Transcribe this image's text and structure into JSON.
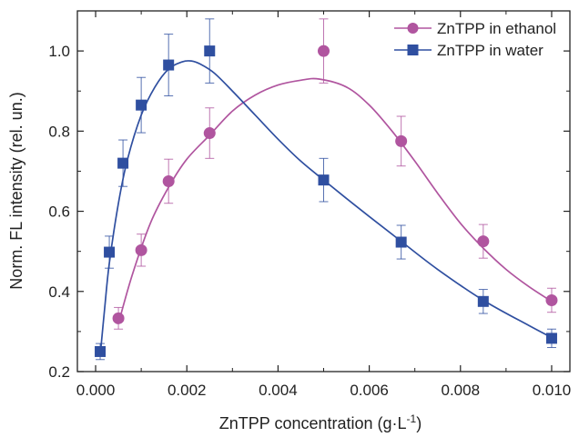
{
  "chart_data": {
    "type": "scatter",
    "xlabel": "ZnTPP concentration (g·L",
    "xlabel_sup": "-1",
    "xlabel_end": ")",
    "ylabel": "Norm. FL intensity (rel. un.)",
    "xlim": [
      -0.0004,
      0.0104
    ],
    "ylim": [
      0.2,
      1.1
    ],
    "x_ticks": [
      0.0,
      0.002,
      0.004,
      0.006,
      0.008,
      0.01
    ],
    "x_tick_labels": [
      "0.000",
      "0.002",
      "0.004",
      "0.006",
      "0.008",
      "0.010"
    ],
    "y_ticks": [
      0.2,
      0.4,
      0.6,
      0.8,
      1.0
    ],
    "y_tick_labels": [
      "0.2",
      "0.4",
      "0.6",
      "0.8",
      "1.0"
    ],
    "grid": false,
    "legend_position": "top-right",
    "series": [
      {
        "name": "ZnTPP in ethanol",
        "color": "#b0559f",
        "marker": "circle",
        "points": [
          {
            "x": 0.0005,
            "y": 0.333,
            "err": 0.027
          },
          {
            "x": 0.001,
            "y": 0.503,
            "err": 0.04
          },
          {
            "x": 0.0016,
            "y": 0.675,
            "err": 0.055
          },
          {
            "x": 0.0025,
            "y": 0.795,
            "err": 0.063
          },
          {
            "x": 0.005,
            "y": 1.0,
            "err": 0.08
          },
          {
            "x": 0.0067,
            "y": 0.775,
            "err": 0.062
          },
          {
            "x": 0.0085,
            "y": 0.525,
            "err": 0.042
          },
          {
            "x": 0.01,
            "y": 0.378,
            "err": 0.03
          }
        ],
        "fit": [
          [
            0.0005,
            0.32
          ],
          [
            0.0008,
            0.44
          ],
          [
            0.0012,
            0.57
          ],
          [
            0.0016,
            0.66
          ],
          [
            0.002,
            0.73
          ],
          [
            0.0025,
            0.79
          ],
          [
            0.003,
            0.85
          ],
          [
            0.0035,
            0.89
          ],
          [
            0.004,
            0.915
          ],
          [
            0.0045,
            0.927
          ],
          [
            0.0049,
            0.93
          ],
          [
            0.0055,
            0.91
          ],
          [
            0.006,
            0.865
          ],
          [
            0.0065,
            0.8
          ],
          [
            0.007,
            0.725
          ],
          [
            0.0075,
            0.645
          ],
          [
            0.008,
            0.57
          ],
          [
            0.0085,
            0.508
          ],
          [
            0.009,
            0.455
          ],
          [
            0.0095,
            0.412
          ],
          [
            0.01,
            0.375
          ]
        ]
      },
      {
        "name": "ZnTPP in water",
        "color": "#2f4fa0",
        "marker": "square",
        "points": [
          {
            "x": 0.0001,
            "y": 0.25,
            "err": 0.02
          },
          {
            "x": 0.0003,
            "y": 0.498,
            "err": 0.04
          },
          {
            "x": 0.0006,
            "y": 0.72,
            "err": 0.058
          },
          {
            "x": 0.001,
            "y": 0.865,
            "err": 0.069
          },
          {
            "x": 0.0016,
            "y": 0.965,
            "err": 0.077
          },
          {
            "x": 0.0025,
            "y": 1.0,
            "err": 0.08
          },
          {
            "x": 0.005,
            "y": 0.678,
            "err": 0.054
          },
          {
            "x": 0.0067,
            "y": 0.523,
            "err": 0.042
          },
          {
            "x": 0.0085,
            "y": 0.375,
            "err": 0.03
          },
          {
            "x": 0.01,
            "y": 0.283,
            "err": 0.023
          }
        ],
        "fit": [
          [
            0.0001,
            0.24
          ],
          [
            0.0002,
            0.36
          ],
          [
            0.0003,
            0.47
          ],
          [
            0.0005,
            0.62
          ],
          [
            0.0007,
            0.73
          ],
          [
            0.001,
            0.84
          ],
          [
            0.0013,
            0.91
          ],
          [
            0.0016,
            0.955
          ],
          [
            0.0019,
            0.973
          ],
          [
            0.0021,
            0.975
          ],
          [
            0.0023,
            0.967
          ],
          [
            0.0026,
            0.945
          ],
          [
            0.003,
            0.9
          ],
          [
            0.0035,
            0.84
          ],
          [
            0.004,
            0.78
          ],
          [
            0.0045,
            0.725
          ],
          [
            0.005,
            0.678
          ],
          [
            0.0055,
            0.632
          ],
          [
            0.006,
            0.587
          ],
          [
            0.0067,
            0.525
          ],
          [
            0.0075,
            0.455
          ],
          [
            0.0085,
            0.378
          ],
          [
            0.0095,
            0.315
          ],
          [
            0.01,
            0.285
          ]
        ]
      }
    ]
  }
}
